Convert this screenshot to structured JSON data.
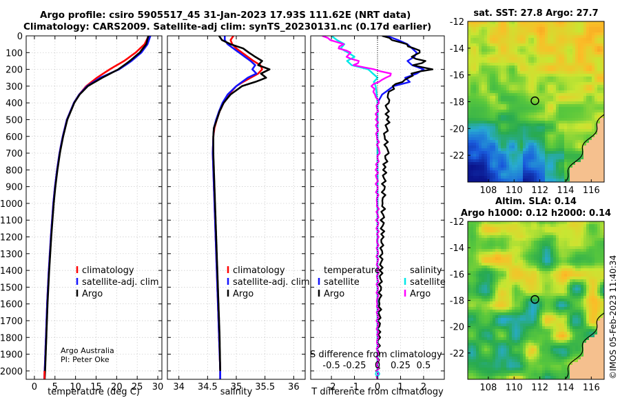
{
  "titles": {
    "line1": "Argo profile: csiro 5905517_45 31-Jan-2023 17.93S 111.62E (NRT data)",
    "line2": "Climatology: CARS2009. Satellite-adj clim: synTS_20230131.nc (0.17d earlier)",
    "sst_map": "sat. SST: 27.8 Argo: 27.7",
    "sla_map_line1": "Altim. SLA: 0.14",
    "sla_map_line2": "Argo h1000: 0.12 h2000: 0.14"
  },
  "credits": {
    "line1": "Argo Australia",
    "line2": "PI: Peter Oke"
  },
  "copyright": "©IMOS 05-Feb-2023 11:40:34",
  "colors": {
    "climatology": "#ff0000",
    "satellite": "#1414ff",
    "argo": "#000000",
    "sat_s": "#00e8e8",
    "argo_s": "#ff00ff",
    "land": "#f5c08e"
  },
  "chart_data": [
    {
      "id": "temperature",
      "type": "line",
      "xlabel": "temperature (deg C)",
      "ylabel": "",
      "xlim": [
        -2,
        31
      ],
      "ylim": [
        2050,
        0
      ],
      "xticks": [
        0,
        5,
        10,
        15,
        20,
        25,
        30
      ],
      "yticks": [
        0,
        100,
        200,
        300,
        400,
        500,
        600,
        700,
        800,
        900,
        1000,
        1100,
        1200,
        1300,
        1400,
        1500,
        1600,
        1700,
        1800,
        1900,
        2000
      ],
      "legend": [
        "climatology",
        "satellite-adj. clim",
        "Argo"
      ],
      "depth": [
        0,
        50,
        100,
        150,
        200,
        250,
        300,
        350,
        400,
        500,
        600,
        700,
        800,
        900,
        1000,
        1200,
        1400,
        1600,
        1800,
        2000,
        2050
      ],
      "series": [
        {
          "name": "climatology",
          "values": [
            27.8,
            26.8,
            24.6,
            21.8,
            18.3,
            15.2,
            12.6,
            10.9,
            9.6,
            7.9,
            6.9,
            6.1,
            5.5,
            5.0,
            4.6,
            4.0,
            3.5,
            3.1,
            2.8,
            2.5,
            2.4
          ]
        },
        {
          "name": "satellite-adj. clim",
          "values": [
            28.2,
            27.5,
            26.0,
            23.6,
            20.6,
            16.0,
            12.8,
            10.9,
            9.6,
            7.9,
            6.9,
            6.1,
            5.5,
            5.0,
            4.6,
            4.0,
            3.5,
            3.1,
            2.8,
            2.5,
            2.4
          ]
        },
        {
          "name": "Argo",
          "values": [
            27.7,
            27.2,
            25.6,
            23.2,
            20.4,
            16.5,
            13.0,
            11.0,
            9.7,
            8.0,
            7.0,
            6.2,
            5.6,
            5.1,
            4.7,
            4.1,
            3.6,
            3.2,
            2.9,
            2.6,
            2.5
          ]
        }
      ]
    },
    {
      "id": "salinity",
      "type": "line",
      "xlabel": "salinity",
      "xlim": [
        33.8,
        36.2
      ],
      "ylim": [
        2050,
        0
      ],
      "xticks": [
        34,
        34.5,
        35,
        35.5,
        36
      ],
      "legend": [
        "climatology",
        "satellite-adj. clim",
        "Argo"
      ],
      "depth": [
        0,
        25,
        50,
        75,
        100,
        125,
        150,
        175,
        200,
        225,
        250,
        275,
        300,
        350,
        400,
        450,
        500,
        550,
        600,
        700,
        800,
        1000,
        1200,
        1400,
        1600,
        1800,
        2000,
        2050
      ],
      "series": [
        {
          "name": "climatology",
          "values": [
            34.95,
            34.9,
            34.93,
            35.0,
            35.1,
            35.2,
            35.3,
            35.42,
            35.45,
            35.38,
            35.25,
            35.12,
            35.0,
            34.87,
            34.78,
            34.71,
            34.66,
            34.62,
            34.6,
            34.59,
            34.6,
            34.62,
            34.64,
            34.66,
            34.68,
            34.7,
            34.72,
            34.72
          ]
        },
        {
          "name": "satellite-adj. clim",
          "values": [
            34.8,
            34.8,
            34.85,
            34.95,
            35.05,
            35.15,
            35.25,
            35.33,
            35.28,
            35.35,
            35.2,
            35.1,
            35.0,
            34.85,
            34.76,
            34.7,
            34.65,
            34.61,
            34.6,
            34.59,
            34.6,
            34.62,
            34.64,
            34.66,
            34.68,
            34.7,
            34.72,
            34.72
          ]
        },
        {
          "name": "Argo",
          "values": [
            34.7,
            34.75,
            34.9,
            35.12,
            35.22,
            35.33,
            35.45,
            35.38,
            35.58,
            35.43,
            35.52,
            35.33,
            35.1,
            34.9,
            34.78,
            34.71,
            34.66,
            34.61,
            34.6,
            34.6,
            34.61,
            34.63,
            34.65,
            34.67,
            34.69,
            34.71,
            34.72,
            34.72
          ]
        }
      ]
    },
    {
      "id": "differences",
      "type": "line",
      "xlabel": "T difference from climatology",
      "xlabel_secondary": "S difference from climatology",
      "xlim": [
        -2.9,
        2.9
      ],
      "ylim": [
        2050,
        0
      ],
      "xticks": [
        -2,
        -1,
        0,
        1,
        2
      ],
      "xticks_secondary": [
        "-0.5",
        "-0.25",
        "0",
        "0.25",
        "0.5"
      ],
      "legend_temperature_title": "temperature",
      "legend_salinity_title": "salinity",
      "legend_temperature": [
        "satellite",
        "Argo"
      ],
      "legend_salinity": [
        "satellite",
        "Argo"
      ],
      "depth": [
        0,
        25,
        50,
        75,
        100,
        125,
        150,
        175,
        200,
        225,
        250,
        275,
        300,
        350,
        400,
        500,
        600,
        700,
        800,
        1000,
        1200,
        1400,
        1600,
        1800,
        2000,
        2050
      ],
      "series": [
        {
          "name": "T satellite",
          "values": [
            0.4,
            0.9,
            1.3,
            1.5,
            1.7,
            1.6,
            1.3,
            1.5,
            2.0,
            1.7,
            1.2,
            1.4,
            0.7,
            0.2,
            0.0,
            0.0,
            0.0,
            0.0,
            0.0,
            0.0,
            0.0,
            0.0,
            0.0,
            0.0,
            0.0,
            0.0
          ]
        },
        {
          "name": "T Argo",
          "values": [
            0.2,
            0.7,
            1.2,
            1.6,
            1.9,
            1.4,
            2.1,
            1.6,
            2.3,
            1.5,
            1.4,
            1.0,
            0.7,
            0.5,
            0.4,
            0.45,
            0.35,
            0.4,
            0.3,
            0.25,
            0.2,
            0.15,
            0.1,
            0.05,
            0.0,
            0.0
          ]
        },
        {
          "name": "S satellite",
          "values": [
            -0.5,
            -0.44,
            -0.36,
            -0.4,
            -0.32,
            -0.25,
            -0.33,
            -0.28,
            -0.1,
            -0.05,
            0.0,
            -0.04,
            -0.02,
            -0.01,
            0.0,
            0.0,
            0.0,
            0.0,
            0.0,
            0.0,
            0.0,
            0.0,
            0.0,
            0.0,
            0.0,
            0.0
          ]
        },
        {
          "name": "S Argo",
          "values": [
            -0.6,
            -0.5,
            -0.38,
            -0.42,
            -0.28,
            -0.35,
            -0.2,
            -0.25,
            -0.05,
            0.15,
            0.1,
            0.0,
            -0.06,
            -0.02,
            0.0,
            -0.01,
            0.0,
            0.01,
            -0.01,
            0.0,
            0.0,
            0.0,
            0.0,
            0.0,
            0.0,
            0.0
          ]
        }
      ]
    },
    {
      "id": "sst_map",
      "type": "heatmap",
      "title": "sat. SST: 27.8 Argo: 27.7",
      "xticks": [
        "108",
        "110",
        "112",
        "114",
        "116"
      ],
      "yticks": [
        "-12",
        "-14",
        "-16",
        "-18",
        "-20",
        "-22"
      ],
      "xlim": [
        106.4,
        117.0
      ],
      "ylim": [
        -24.0,
        -12.0
      ],
      "marker": {
        "lon": 111.62,
        "lat": -17.93
      }
    },
    {
      "id": "sla_map",
      "type": "heatmap",
      "title": "Altim. SLA: 0.14 / Argo h1000: 0.12 h2000: 0.14",
      "xticks": [
        "108",
        "110",
        "112",
        "114",
        "116"
      ],
      "yticks": [
        "-12",
        "-14",
        "-16",
        "-18",
        "-20",
        "-22"
      ],
      "xlim": [
        106.4,
        117.0
      ],
      "ylim": [
        -24.0,
        -12.0
      ],
      "marker": {
        "lon": 111.62,
        "lat": -17.93
      }
    }
  ]
}
